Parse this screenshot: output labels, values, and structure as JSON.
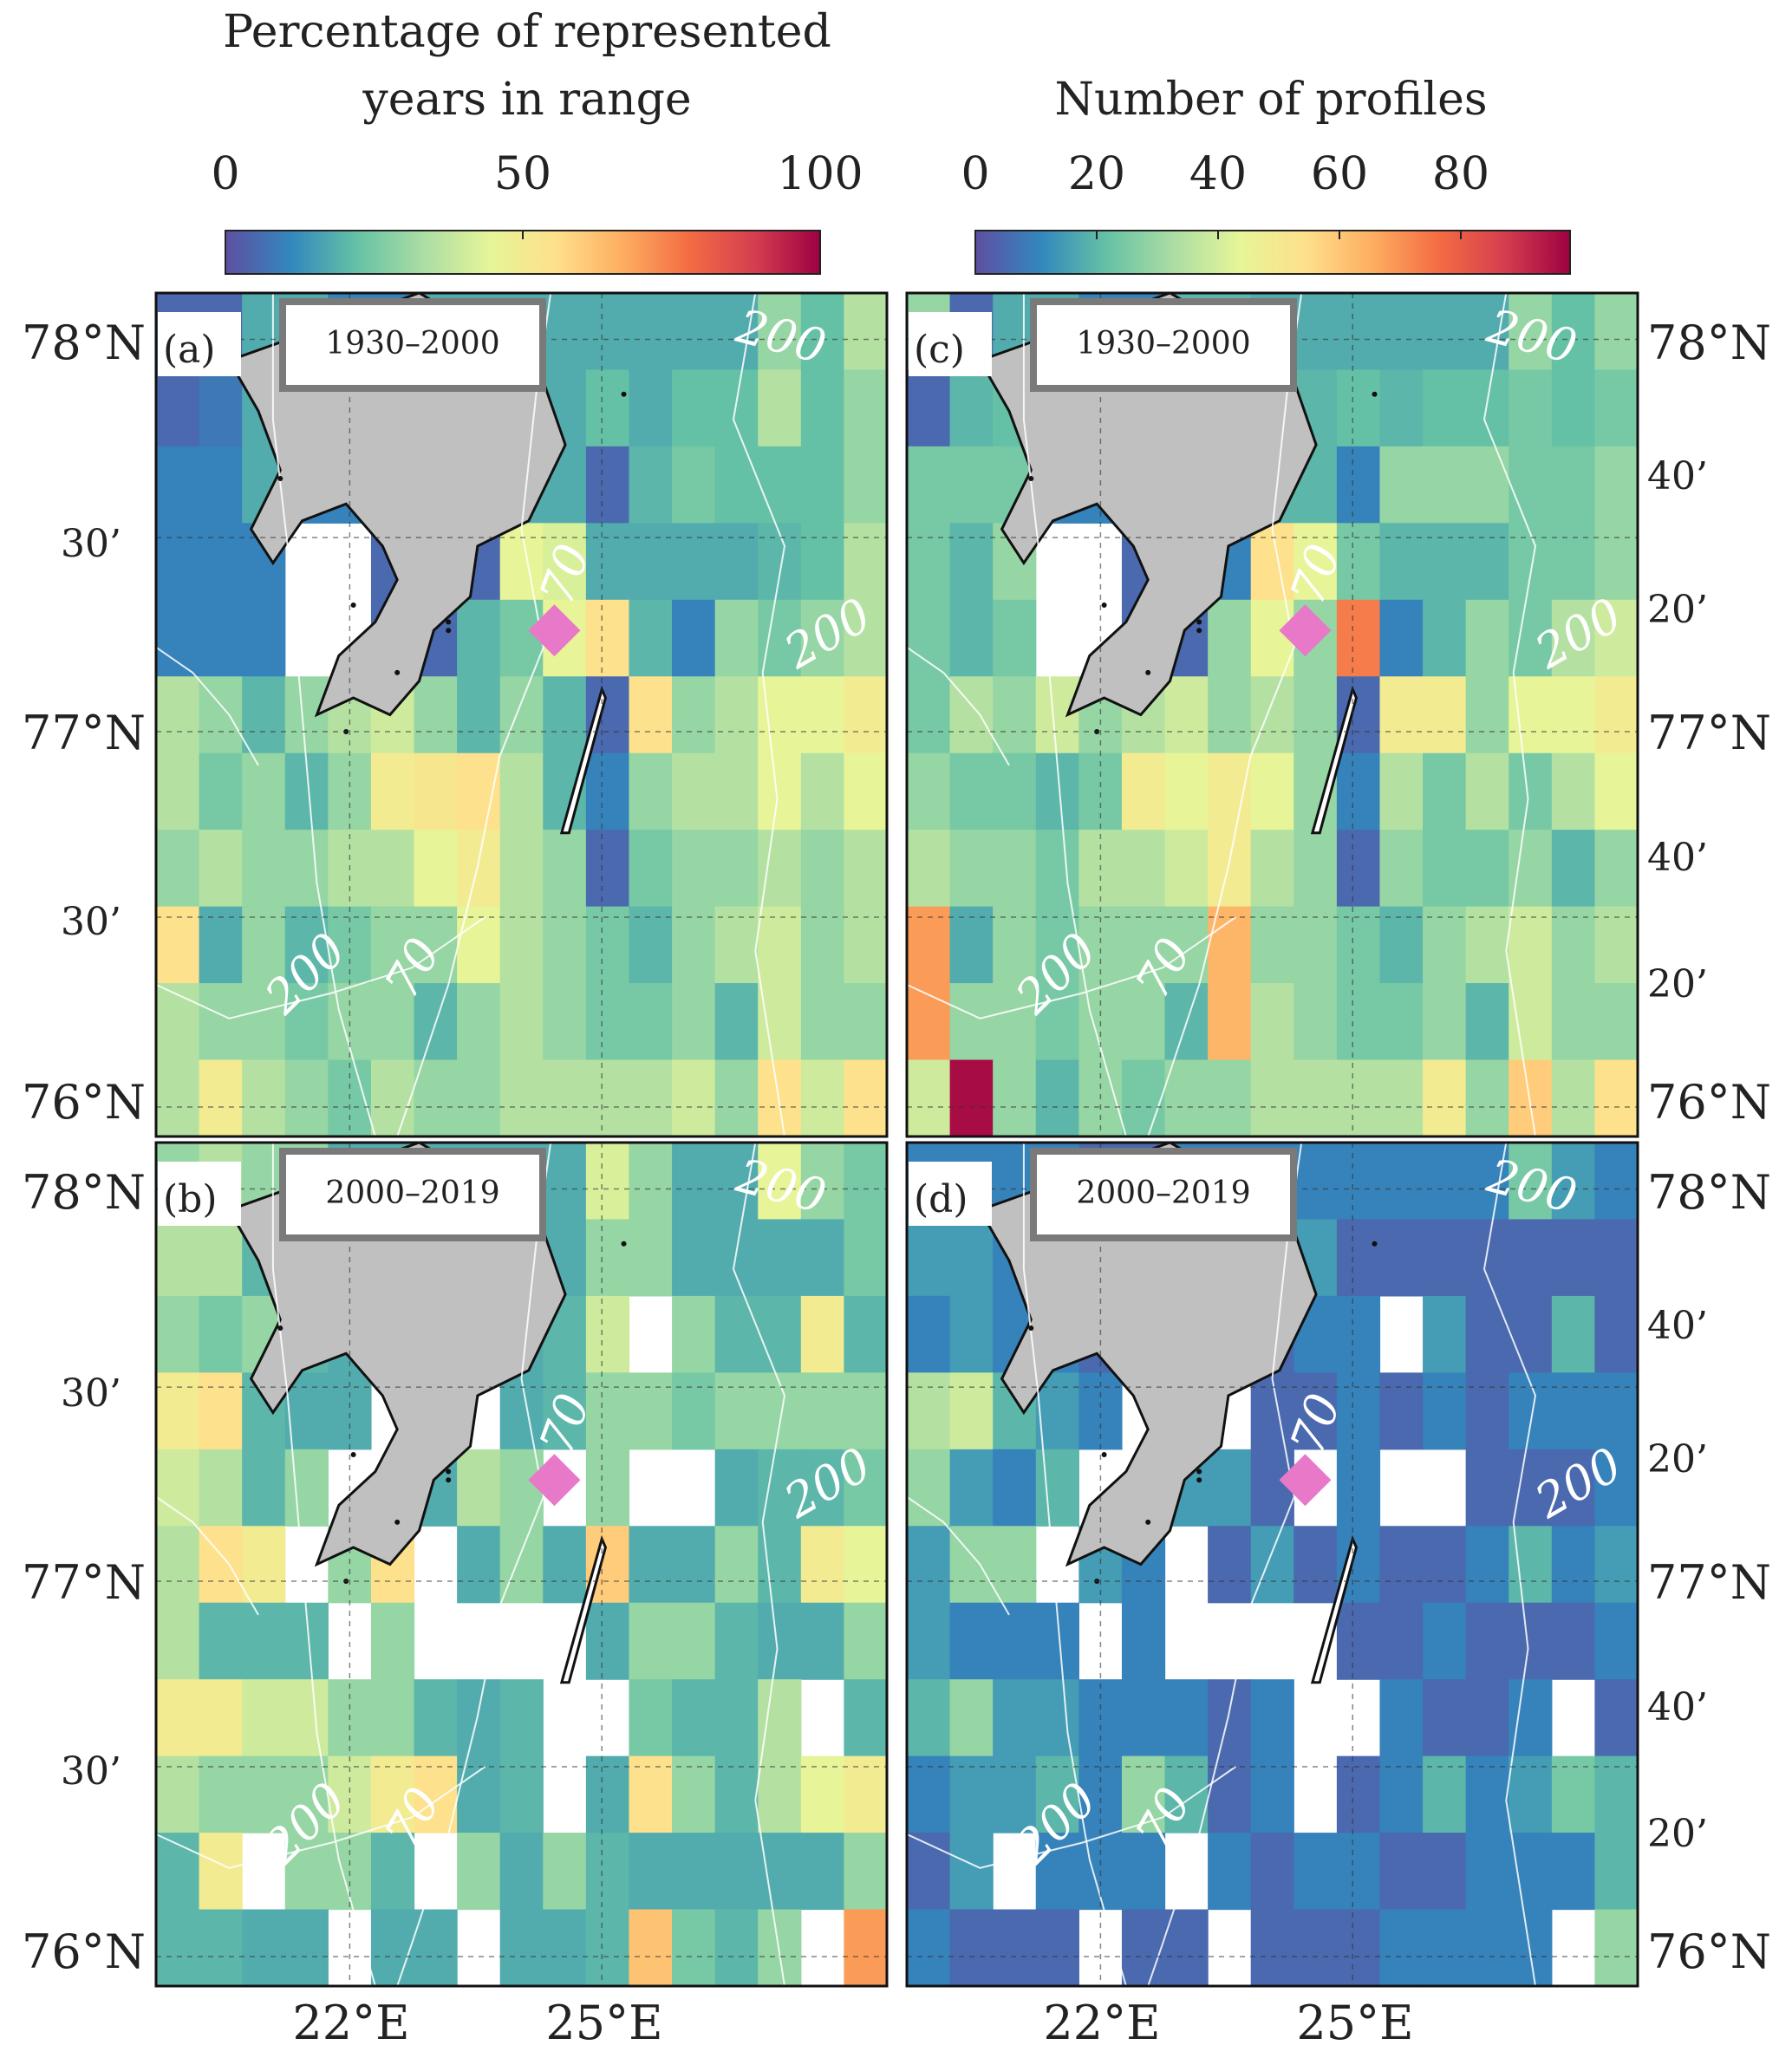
{
  "colorbars": {
    "left": {
      "title_line1": "Percentage of represented",
      "title_line2": "years in range",
      "ticks": [
        "0",
        "50",
        "100"
      ]
    },
    "right": {
      "title": "Number of profiles",
      "ticks": [
        "0",
        "20",
        "40",
        "60",
        "80"
      ]
    }
  },
  "colors": {
    "colormap": [
      "#5e4fa2",
      "#3288bd",
      "#66c2a5",
      "#abdda4",
      "#e6f598",
      "#fee08b",
      "#fdae61",
      "#f46d43",
      "#d53e4f",
      "#9e0142"
    ],
    "land": "#c0c0c0",
    "marker": "#e879c9",
    "contour": "#ffffff",
    "label_box_border": "#7a7a7a"
  },
  "panels": {
    "a": {
      "label": "(a)",
      "period": "1930–2000"
    },
    "b": {
      "label": "(b)",
      "period": "2000–2019"
    },
    "c": {
      "label": "(c)",
      "period": "1930–2000"
    },
    "d": {
      "label": "(d)",
      "period": "2000–2019"
    }
  },
  "axes": {
    "lat": {
      "n78": "78°N",
      "m30": "30’",
      "n77": "77°N",
      "n76": "76°N"
    },
    "lat_right": {
      "n78": "78°N",
      "m40": "40’",
      "m20": "20’",
      "n77": "77°N",
      "n76": "76°N"
    },
    "lon": {
      "e22": "22°E",
      "e25": "25°E"
    }
  },
  "contour_labels": {
    "deep": "200",
    "shallow": "70"
  },
  "map_grid": {
    "columns": 17,
    "rows": 11,
    "note_cell_values": "0-1 fractions of colour scale; null = no data (white)",
    "cells": {
      "a": [
        [
          0.05,
          0.05,
          0.18,
          0.18,
          0.1,
          0.1,
          0.18,
          0.18,
          0.18,
          0.18,
          0.18,
          0.18,
          0.18,
          0.18,
          0.3,
          0.22,
          0.35
        ],
        [
          0.05,
          0.08,
          0.18,
          0.2,
          0.1,
          0.1,
          0.18,
          0.18,
          0.1,
          0.18,
          0.22,
          0.18,
          0.22,
          0.22,
          0.35,
          0.22,
          0.3
        ],
        [
          0.1,
          0.1,
          0.18,
          0.1,
          0.1,
          0.1,
          0.05,
          0.18,
          0.18,
          0.18,
          0.05,
          0.2,
          0.25,
          0.22,
          0.22,
          0.22,
          0.3
        ],
        [
          0.1,
          0.1,
          0.1,
          null,
          null,
          0.05,
          0.05,
          0.05,
          0.45,
          0.42,
          0.18,
          0.18,
          0.18,
          0.18,
          0.2,
          0.22,
          0.35
        ],
        [
          0.1,
          0.1,
          0.1,
          null,
          null,
          0.05,
          0.05,
          0.2,
          0.25,
          0.45,
          0.55,
          0.2,
          0.1,
          0.3,
          0.25,
          0.3,
          0.35
        ],
        [
          0.35,
          0.3,
          0.2,
          0.3,
          0.35,
          0.4,
          0.3,
          0.2,
          0.3,
          0.2,
          0.05,
          0.55,
          0.3,
          0.35,
          0.45,
          0.45,
          0.5
        ],
        [
          0.35,
          0.25,
          0.3,
          0.2,
          0.3,
          0.5,
          0.52,
          0.55,
          0.35,
          0.2,
          0.1,
          0.3,
          0.35,
          0.35,
          0.45,
          0.35,
          0.45
        ],
        [
          0.3,
          0.35,
          0.3,
          0.3,
          0.35,
          0.35,
          0.45,
          0.5,
          0.35,
          0.3,
          0.05,
          0.25,
          0.3,
          0.3,
          0.35,
          0.3,
          0.35
        ],
        [
          0.55,
          0.18,
          0.3,
          0.2,
          0.25,
          0.3,
          0.3,
          0.45,
          0.35,
          0.3,
          0.25,
          0.2,
          0.3,
          0.35,
          0.4,
          0.3,
          0.35
        ],
        [
          0.35,
          0.3,
          0.3,
          0.25,
          0.3,
          0.3,
          0.2,
          0.3,
          0.35,
          0.3,
          0.25,
          0.25,
          0.3,
          0.2,
          0.4,
          0.3,
          0.3
        ],
        [
          0.35,
          0.5,
          0.35,
          0.3,
          0.25,
          0.35,
          0.3,
          0.3,
          0.35,
          0.35,
          0.35,
          0.35,
          0.4,
          0.3,
          0.55,
          0.4,
          0.55
        ]
      ],
      "b": [
        [
          0.3,
          0.35,
          0.3,
          0.3,
          0.18,
          0.18,
          0.18,
          0.18,
          0.18,
          0.18,
          0.42,
          0.3,
          0.18,
          0.18,
          0.45,
          0.3,
          0.25
        ],
        [
          0.35,
          0.35,
          0.2,
          0.2,
          0.18,
          0.18,
          0.18,
          null,
          0.18,
          0.18,
          0.3,
          0.3,
          0.18,
          0.18,
          0.18,
          0.18,
          0.25
        ],
        [
          0.3,
          0.25,
          0.3,
          0.2,
          0.18,
          0.18,
          0.18,
          0.18,
          0.18,
          0.2,
          0.4,
          null,
          0.3,
          0.2,
          0.2,
          0.5,
          0.2
        ],
        [
          0.5,
          0.55,
          0.2,
          0.18,
          0.18,
          null,
          null,
          null,
          0.18,
          0.2,
          0.3,
          0.3,
          0.25,
          0.3,
          0.3,
          0.3,
          0.3
        ],
        [
          0.4,
          0.35,
          0.2,
          0.3,
          null,
          null,
          0.18,
          0.35,
          0.3,
          null,
          0.3,
          null,
          null,
          0.18,
          0.2,
          0.2,
          0.25
        ],
        [
          0.35,
          0.55,
          0.5,
          null,
          0.3,
          0.55,
          null,
          0.18,
          0.3,
          0.18,
          0.6,
          0.18,
          0.18,
          0.3,
          0.2,
          0.5,
          0.45
        ],
        [
          0.35,
          0.2,
          0.2,
          0.2,
          null,
          0.3,
          null,
          null,
          null,
          null,
          0.18,
          0.3,
          0.3,
          0.2,
          0.18,
          0.18,
          0.3
        ],
        [
          0.5,
          0.5,
          0.4,
          0.4,
          0.3,
          0.3,
          0.2,
          0.18,
          0.2,
          null,
          null,
          0.25,
          0.2,
          0.2,
          0.35,
          null,
          0.2
        ],
        [
          0.35,
          0.3,
          0.3,
          0.3,
          0.4,
          0.5,
          0.55,
          0.18,
          0.2,
          null,
          0.18,
          0.55,
          0.3,
          0.2,
          0.35,
          0.45,
          0.5
        ],
        [
          0.2,
          0.5,
          null,
          0.3,
          0.3,
          0.2,
          null,
          0.3,
          0.18,
          0.3,
          0.2,
          0.18,
          0.18,
          0.18,
          0.18,
          0.18,
          0.3
        ],
        [
          0.2,
          0.2,
          0.18,
          0.18,
          null,
          0.18,
          0.18,
          null,
          0.18,
          0.18,
          0.2,
          0.62,
          0.25,
          0.2,
          0.3,
          null,
          0.7
        ]
      ],
      "c": [
        [
          0.3,
          0.05,
          0.18,
          0.18,
          0.1,
          0.1,
          0.2,
          0.2,
          0.18,
          0.18,
          0.18,
          0.18,
          0.18,
          0.18,
          0.3,
          0.22,
          0.3
        ],
        [
          0.05,
          0.2,
          0.22,
          0.2,
          0.1,
          0.1,
          0.18,
          0.18,
          0.1,
          0.2,
          0.22,
          0.2,
          0.22,
          0.22,
          0.25,
          0.22,
          0.25
        ],
        [
          0.25,
          0.25,
          0.25,
          0.1,
          0.1,
          0.1,
          0.05,
          0.25,
          0.2,
          0.2,
          0.1,
          0.3,
          0.3,
          0.3,
          0.25,
          0.25,
          0.3
        ],
        [
          0.25,
          0.2,
          0.3,
          null,
          null,
          0.05,
          0.05,
          0.1,
          0.55,
          0.45,
          0.25,
          0.2,
          0.2,
          0.2,
          0.25,
          0.25,
          0.3
        ],
        [
          0.25,
          0.2,
          0.25,
          null,
          null,
          0.05,
          0.05,
          0.3,
          0.45,
          0.3,
          0.75,
          0.1,
          0.2,
          0.3,
          0.25,
          0.35,
          0.4
        ],
        [
          0.25,
          0.35,
          0.3,
          0.4,
          0.3,
          0.35,
          0.4,
          0.3,
          0.35,
          0.3,
          0.05,
          0.5,
          0.5,
          0.3,
          0.45,
          0.45,
          0.5
        ],
        [
          0.3,
          0.25,
          0.25,
          0.2,
          0.25,
          0.5,
          0.45,
          0.5,
          0.45,
          0.3,
          0.1,
          0.35,
          0.25,
          0.35,
          0.25,
          0.35,
          0.45
        ],
        [
          0.35,
          0.3,
          0.3,
          0.25,
          0.35,
          0.35,
          0.4,
          0.5,
          0.35,
          0.3,
          0.05,
          0.3,
          0.25,
          0.25,
          0.3,
          0.2,
          0.3
        ],
        [
          0.7,
          0.18,
          0.3,
          0.25,
          0.3,
          0.3,
          0.3,
          0.65,
          0.3,
          0.3,
          0.25,
          0.2,
          0.3,
          0.35,
          0.4,
          0.3,
          0.35
        ],
        [
          0.7,
          0.3,
          0.3,
          0.25,
          0.3,
          0.3,
          0.2,
          0.65,
          0.35,
          0.3,
          0.25,
          0.25,
          0.3,
          0.2,
          0.4,
          0.3,
          0.3
        ],
        [
          0.4,
          0.98,
          0.3,
          0.2,
          0.3,
          0.25,
          0.3,
          0.3,
          0.35,
          0.35,
          0.35,
          0.35,
          0.5,
          0.3,
          0.6,
          0.35,
          0.55
        ]
      ],
      "d": [
        [
          0.1,
          0.1,
          0.1,
          0.1,
          0.05,
          0.05,
          0.1,
          0.1,
          0.1,
          0.1,
          0.1,
          0.1,
          0.1,
          0.1,
          0.25,
          0.15,
          0.1
        ],
        [
          0.15,
          0.15,
          0.1,
          0.1,
          0.05,
          0.05,
          0.1,
          0.15,
          0.15,
          0.15,
          0.05,
          0.05,
          0.05,
          0.05,
          0.05,
          0.05,
          0.05
        ],
        [
          0.1,
          0.15,
          0.1,
          0.1,
          0.05,
          0.05,
          0.1,
          0.1,
          0.05,
          0.1,
          0.1,
          null,
          0.15,
          0.05,
          0.05,
          0.2,
          0.05
        ],
        [
          0.35,
          0.4,
          0.2,
          0.15,
          0.1,
          null,
          null,
          null,
          0.05,
          0.05,
          0.1,
          0.05,
          0.1,
          0.05,
          0.1,
          0.1,
          0.1
        ],
        [
          0.3,
          0.15,
          0.1,
          0.2,
          null,
          null,
          0.15,
          0.15,
          0.05,
          null,
          0.1,
          null,
          null,
          0.05,
          0.05,
          0.05,
          0.1
        ],
        [
          0.15,
          0.3,
          0.3,
          null,
          0.15,
          0.1,
          null,
          0.05,
          0.15,
          0.05,
          0.1,
          0.05,
          0.05,
          0.1,
          0.2,
          0.1,
          0.15
        ],
        [
          0.15,
          0.1,
          0.1,
          0.1,
          null,
          0.1,
          null,
          null,
          null,
          null,
          0.05,
          0.05,
          0.1,
          0.05,
          0.05,
          0.05,
          0.1
        ],
        [
          0.2,
          0.3,
          0.15,
          0.15,
          0.1,
          0.1,
          0.1,
          0.05,
          0.1,
          null,
          null,
          0.1,
          0.05,
          0.05,
          0.1,
          null,
          0.05
        ],
        [
          0.1,
          0.15,
          0.15,
          0.2,
          0.1,
          0.3,
          0.2,
          0.05,
          0.1,
          null,
          0.05,
          0.1,
          0.2,
          0.1,
          0.15,
          0.25,
          0.2
        ],
        [
          0.05,
          0.15,
          null,
          0.1,
          0.1,
          0.1,
          null,
          0.1,
          0.05,
          0.1,
          0.1,
          0.05,
          0.05,
          0.1,
          0.1,
          0.1,
          0.2
        ],
        [
          0.1,
          0.05,
          0.05,
          0.05,
          null,
          0.05,
          0.05,
          null,
          0.05,
          0.05,
          0.05,
          0.1,
          0.1,
          0.1,
          0.1,
          null,
          0.3
        ]
      ]
    }
  }
}
